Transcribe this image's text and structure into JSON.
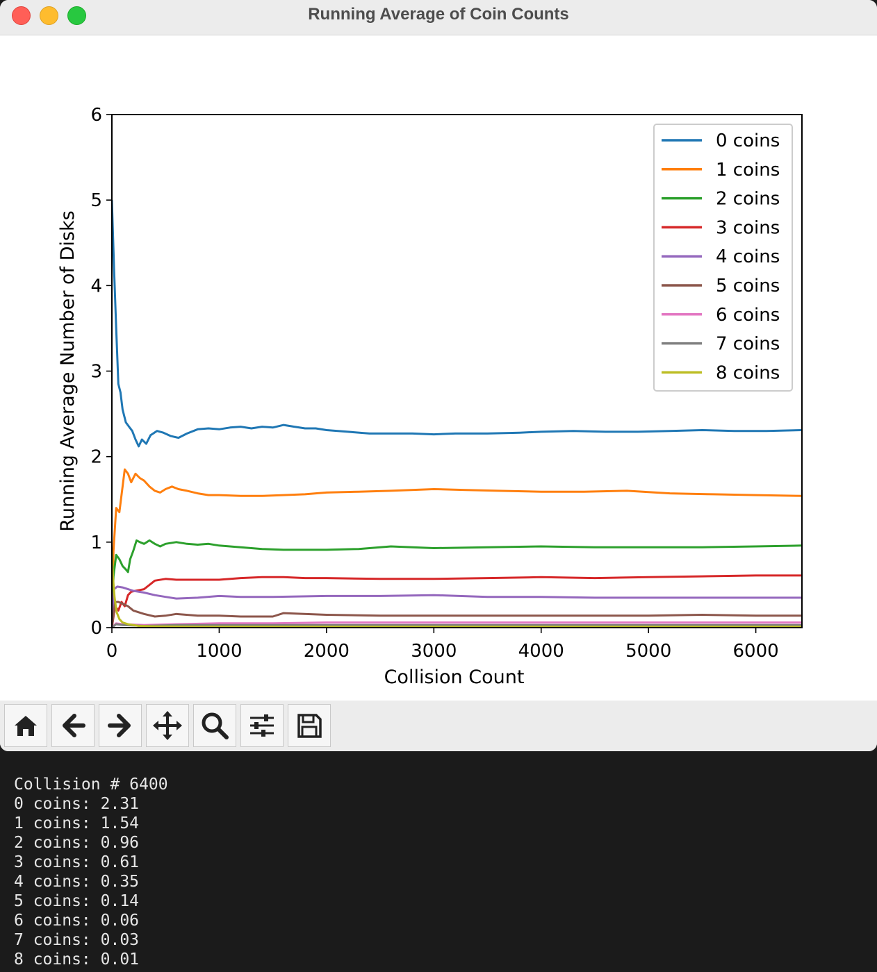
{
  "window": {
    "title": "Running Average of Coin Counts"
  },
  "toolbar": {
    "buttons": [
      {
        "icon": "home-icon"
      },
      {
        "icon": "back-arrow-icon"
      },
      {
        "icon": "forward-arrow-icon"
      },
      {
        "icon": "pan-move-icon"
      },
      {
        "icon": "zoom-magnifier-icon"
      },
      {
        "icon": "configure-subplots-icon"
      },
      {
        "icon": "save-floppy-icon"
      }
    ]
  },
  "terminal": {
    "lines": [
      "Collision # 6400",
      "0 coins: 2.31",
      "1 coins: 1.54",
      "2 coins: 0.96",
      "3 coins: 0.61",
      "4 coins: 0.35",
      "5 coins: 0.14",
      "6 coins: 0.06",
      "7 coins: 0.03",
      "8 coins: 0.01"
    ]
  },
  "chart_data": {
    "type": "line",
    "title": "",
    "xlabel": "Collision Count",
    "ylabel": "Running Average Number of Disks",
    "xlim": [
      0,
      6430
    ],
    "ylim": [
      0,
      6
    ],
    "xticks": [
      "0",
      "1000",
      "2000",
      "3000",
      "4000",
      "5000",
      "6000"
    ],
    "yticks": [
      "0",
      "1",
      "2",
      "3",
      "4",
      "5",
      "6"
    ],
    "grid": false,
    "legend_position": "top-right",
    "series": [
      {
        "name": "0 coins",
        "color": "#1f77b4",
        "points": [
          [
            0,
            5.0
          ],
          [
            20,
            4.2
          ],
          [
            40,
            3.5
          ],
          [
            60,
            2.85
          ],
          [
            80,
            2.75
          ],
          [
            100,
            2.55
          ],
          [
            130,
            2.4
          ],
          [
            160,
            2.35
          ],
          [
            190,
            2.3
          ],
          [
            220,
            2.2
          ],
          [
            250,
            2.12
          ],
          [
            280,
            2.2
          ],
          [
            320,
            2.15
          ],
          [
            360,
            2.25
          ],
          [
            420,
            2.3
          ],
          [
            480,
            2.28
          ],
          [
            550,
            2.24
          ],
          [
            620,
            2.22
          ],
          [
            700,
            2.27
          ],
          [
            800,
            2.32
          ],
          [
            900,
            2.33
          ],
          [
            1000,
            2.32
          ],
          [
            1100,
            2.34
          ],
          [
            1200,
            2.35
          ],
          [
            1300,
            2.33
          ],
          [
            1400,
            2.35
          ],
          [
            1500,
            2.34
          ],
          [
            1600,
            2.37
          ],
          [
            1700,
            2.35
          ],
          [
            1800,
            2.33
          ],
          [
            1900,
            2.33
          ],
          [
            2000,
            2.31
          ],
          [
            2200,
            2.29
          ],
          [
            2400,
            2.27
          ],
          [
            2600,
            2.27
          ],
          [
            2800,
            2.27
          ],
          [
            3000,
            2.26
          ],
          [
            3200,
            2.27
          ],
          [
            3500,
            2.27
          ],
          [
            3800,
            2.28
          ],
          [
            4000,
            2.29
          ],
          [
            4300,
            2.3
          ],
          [
            4600,
            2.29
          ],
          [
            4900,
            2.29
          ],
          [
            5200,
            2.3
          ],
          [
            5500,
            2.31
          ],
          [
            5800,
            2.3
          ],
          [
            6100,
            2.3
          ],
          [
            6430,
            2.31
          ]
        ]
      },
      {
        "name": "1 coins",
        "color": "#ff7f0e",
        "points": [
          [
            0,
            0.0
          ],
          [
            15,
            0.9
          ],
          [
            40,
            1.4
          ],
          [
            70,
            1.35
          ],
          [
            100,
            1.65
          ],
          [
            120,
            1.85
          ],
          [
            150,
            1.8
          ],
          [
            180,
            1.7
          ],
          [
            220,
            1.8
          ],
          [
            260,
            1.75
          ],
          [
            300,
            1.72
          ],
          [
            350,
            1.65
          ],
          [
            400,
            1.6
          ],
          [
            450,
            1.58
          ],
          [
            500,
            1.62
          ],
          [
            560,
            1.65
          ],
          [
            620,
            1.62
          ],
          [
            700,
            1.6
          ],
          [
            800,
            1.57
          ],
          [
            900,
            1.55
          ],
          [
            1000,
            1.55
          ],
          [
            1200,
            1.54
          ],
          [
            1400,
            1.54
          ],
          [
            1600,
            1.55
          ],
          [
            1800,
            1.56
          ],
          [
            2000,
            1.58
          ],
          [
            2300,
            1.59
          ],
          [
            2600,
            1.6
          ],
          [
            3000,
            1.62
          ],
          [
            3300,
            1.61
          ],
          [
            3600,
            1.6
          ],
          [
            4000,
            1.59
          ],
          [
            4400,
            1.59
          ],
          [
            4800,
            1.6
          ],
          [
            5200,
            1.57
          ],
          [
            5600,
            1.56
          ],
          [
            6000,
            1.55
          ],
          [
            6430,
            1.54
          ]
        ]
      },
      {
        "name": "2 coins",
        "color": "#2ca02c",
        "points": [
          [
            0,
            0.0
          ],
          [
            15,
            0.6
          ],
          [
            40,
            0.85
          ],
          [
            70,
            0.8
          ],
          [
            100,
            0.72
          ],
          [
            130,
            0.68
          ],
          [
            150,
            0.65
          ],
          [
            170,
            0.8
          ],
          [
            200,
            0.9
          ],
          [
            230,
            1.02
          ],
          [
            260,
            1.0
          ],
          [
            300,
            0.98
          ],
          [
            350,
            1.02
          ],
          [
            400,
            0.98
          ],
          [
            450,
            0.95
          ],
          [
            500,
            0.98
          ],
          [
            600,
            1.0
          ],
          [
            700,
            0.98
          ],
          [
            800,
            0.97
          ],
          [
            900,
            0.98
          ],
          [
            1000,
            0.96
          ],
          [
            1200,
            0.94
          ],
          [
            1400,
            0.92
          ],
          [
            1600,
            0.91
          ],
          [
            1800,
            0.91
          ],
          [
            2000,
            0.91
          ],
          [
            2300,
            0.92
          ],
          [
            2600,
            0.95
          ],
          [
            3000,
            0.93
          ],
          [
            3500,
            0.94
          ],
          [
            4000,
            0.95
          ],
          [
            4500,
            0.94
          ],
          [
            5000,
            0.94
          ],
          [
            5500,
            0.94
          ],
          [
            6000,
            0.95
          ],
          [
            6430,
            0.96
          ]
        ]
      },
      {
        "name": "3 coins",
        "color": "#d62728",
        "points": [
          [
            0,
            0.0
          ],
          [
            30,
            0.25
          ],
          [
            60,
            0.2
          ],
          [
            90,
            0.3
          ],
          [
            120,
            0.25
          ],
          [
            150,
            0.38
          ],
          [
            180,
            0.42
          ],
          [
            220,
            0.43
          ],
          [
            260,
            0.44
          ],
          [
            300,
            0.45
          ],
          [
            350,
            0.5
          ],
          [
            400,
            0.55
          ],
          [
            500,
            0.57
          ],
          [
            600,
            0.56
          ],
          [
            800,
            0.56
          ],
          [
            1000,
            0.56
          ],
          [
            1200,
            0.58
          ],
          [
            1400,
            0.59
          ],
          [
            1600,
            0.59
          ],
          [
            1800,
            0.58
          ],
          [
            2000,
            0.58
          ],
          [
            2500,
            0.57
          ],
          [
            3000,
            0.57
          ],
          [
            3500,
            0.58
          ],
          [
            4000,
            0.59
          ],
          [
            4500,
            0.58
          ],
          [
            5000,
            0.59
          ],
          [
            5500,
            0.6
          ],
          [
            6000,
            0.61
          ],
          [
            6430,
            0.61
          ]
        ]
      },
      {
        "name": "4 coins",
        "color": "#9467bd",
        "points": [
          [
            0,
            0.0
          ],
          [
            20,
            0.45
          ],
          [
            50,
            0.48
          ],
          [
            100,
            0.47
          ],
          [
            150,
            0.45
          ],
          [
            200,
            0.43
          ],
          [
            300,
            0.41
          ],
          [
            400,
            0.38
          ],
          [
            500,
            0.36
          ],
          [
            600,
            0.34
          ],
          [
            800,
            0.35
          ],
          [
            1000,
            0.37
          ],
          [
            1200,
            0.36
          ],
          [
            1500,
            0.36
          ],
          [
            2000,
            0.37
          ],
          [
            2500,
            0.37
          ],
          [
            3000,
            0.38
          ],
          [
            3500,
            0.36
          ],
          [
            4000,
            0.36
          ],
          [
            4500,
            0.35
          ],
          [
            5000,
            0.35
          ],
          [
            5500,
            0.35
          ],
          [
            6000,
            0.35
          ],
          [
            6430,
            0.35
          ]
        ]
      },
      {
        "name": "5 coins",
        "color": "#8c564b",
        "points": [
          [
            0,
            0.0
          ],
          [
            30,
            0.3
          ],
          [
            60,
            0.3
          ],
          [
            100,
            0.28
          ],
          [
            150,
            0.25
          ],
          [
            200,
            0.2
          ],
          [
            300,
            0.16
          ],
          [
            400,
            0.13
          ],
          [
            500,
            0.14
          ],
          [
            600,
            0.16
          ],
          [
            800,
            0.14
          ],
          [
            1000,
            0.14
          ],
          [
            1200,
            0.13
          ],
          [
            1500,
            0.13
          ],
          [
            1600,
            0.17
          ],
          [
            2000,
            0.15
          ],
          [
            2500,
            0.14
          ],
          [
            3000,
            0.14
          ],
          [
            3500,
            0.14
          ],
          [
            4000,
            0.14
          ],
          [
            5000,
            0.14
          ],
          [
            5500,
            0.15
          ],
          [
            6000,
            0.14
          ],
          [
            6430,
            0.14
          ]
        ]
      },
      {
        "name": "6 coins",
        "color": "#e377c2",
        "points": [
          [
            0,
            0.0
          ],
          [
            40,
            0.05
          ],
          [
            100,
            0.04
          ],
          [
            300,
            0.03
          ],
          [
            600,
            0.04
          ],
          [
            1000,
            0.05
          ],
          [
            1500,
            0.05
          ],
          [
            2000,
            0.06
          ],
          [
            2500,
            0.06
          ],
          [
            3000,
            0.06
          ],
          [
            4000,
            0.06
          ],
          [
            5000,
            0.06
          ],
          [
            6000,
            0.06
          ],
          [
            6430,
            0.06
          ]
        ]
      },
      {
        "name": "7 coins",
        "color": "#7f7f7f",
        "points": [
          [
            0,
            0.0
          ],
          [
            40,
            0.04
          ],
          [
            100,
            0.03
          ],
          [
            300,
            0.02
          ],
          [
            600,
            0.03
          ],
          [
            1000,
            0.03
          ],
          [
            2000,
            0.03
          ],
          [
            3000,
            0.03
          ],
          [
            4000,
            0.03
          ],
          [
            5000,
            0.03
          ],
          [
            6000,
            0.03
          ],
          [
            6430,
            0.03
          ]
        ]
      },
      {
        "name": "8 coins",
        "color": "#bcbd22",
        "points": [
          [
            0,
            0.9
          ],
          [
            10,
            0.6
          ],
          [
            25,
            0.35
          ],
          [
            45,
            0.18
          ],
          [
            70,
            0.1
          ],
          [
            100,
            0.06
          ],
          [
            150,
            0.04
          ],
          [
            250,
            0.02
          ],
          [
            400,
            0.015
          ],
          [
            800,
            0.01
          ],
          [
            2000,
            0.01
          ],
          [
            4000,
            0.01
          ],
          [
            6430,
            0.01
          ]
        ]
      }
    ]
  }
}
